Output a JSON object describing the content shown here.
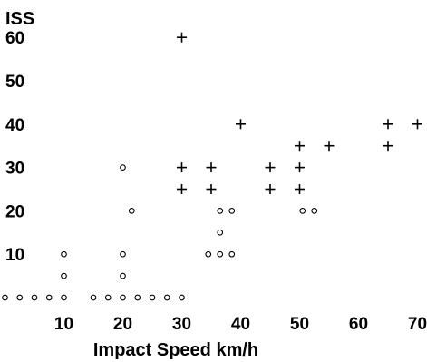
{
  "chart_data": {
    "type": "scatter",
    "title": "",
    "xlabel": "Impact Speed km/h",
    "ylabel": "ISS",
    "xlim": [
      0,
      72
    ],
    "ylim": [
      0,
      65
    ],
    "x_ticks": [
      10,
      20,
      30,
      40,
      50,
      60,
      70
    ],
    "y_ticks": [
      10,
      20,
      30,
      40,
      50,
      60
    ],
    "grid": false,
    "legend": "none",
    "series": [
      {
        "marker": "circle",
        "points": [
          [
            0,
            0
          ],
          [
            2.5,
            0
          ],
          [
            5,
            0
          ],
          [
            7.5,
            0
          ],
          [
            10,
            0
          ],
          [
            15,
            0
          ],
          [
            17.5,
            0
          ],
          [
            20,
            0
          ],
          [
            22.5,
            0
          ],
          [
            25,
            0
          ],
          [
            27.5,
            0
          ],
          [
            30,
            0
          ],
          [
            10,
            5
          ],
          [
            10,
            10
          ],
          [
            20,
            5
          ],
          [
            20,
            10
          ],
          [
            20,
            30
          ],
          [
            21.5,
            20
          ],
          [
            34.5,
            10
          ],
          [
            36.5,
            10
          ],
          [
            38.5,
            10
          ],
          [
            36.5,
            15
          ],
          [
            36.5,
            20
          ],
          [
            38.5,
            20
          ],
          [
            50.5,
            20
          ],
          [
            52.5,
            20
          ]
        ]
      },
      {
        "marker": "plus",
        "points": [
          [
            30,
            60
          ],
          [
            40,
            40
          ],
          [
            65,
            40
          ],
          [
            70,
            40
          ],
          [
            50,
            35
          ],
          [
            55,
            35
          ],
          [
            65,
            35
          ],
          [
            30,
            30
          ],
          [
            35,
            30
          ],
          [
            45,
            30
          ],
          [
            50,
            30
          ],
          [
            30,
            25
          ],
          [
            35,
            25
          ],
          [
            45,
            25
          ],
          [
            50,
            25
          ]
        ]
      }
    ]
  }
}
